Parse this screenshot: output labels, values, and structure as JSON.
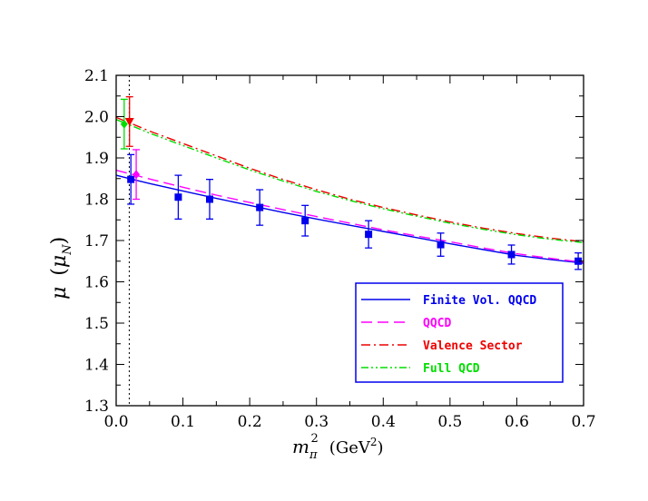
{
  "chart_data": {
    "type": "line",
    "xlabel": {
      "symbol": "m",
      "subscript": "π",
      "superscript": "2",
      "unit": "(GeV",
      "unit_power": "2",
      "unit_close": ")"
    },
    "ylabel": {
      "symbol": "μ",
      "open": "(",
      "inner": "μ",
      "inner_sub": "N",
      "close": ")"
    },
    "xlim": [
      0,
      0.7
    ],
    "ylim": [
      1.3,
      2.1
    ],
    "xticks": [
      "0.0",
      "0.1",
      "0.2",
      "0.3",
      "0.4",
      "0.5",
      "0.6",
      "0.7"
    ],
    "yticks": [
      "1.3",
      "1.4",
      "1.5",
      "1.6",
      "1.7",
      "1.8",
      "1.9",
      "2.0",
      "2.1"
    ],
    "vline_x": 0.0196,
    "curves": [
      {
        "name": "Finite Vol. QQCD",
        "color": "#0000ee",
        "dash": "",
        "x": [
          0.0,
          0.02,
          0.05,
          0.1,
          0.15,
          0.2,
          0.25,
          0.3,
          0.35,
          0.4,
          0.45,
          0.5,
          0.55,
          0.6,
          0.65,
          0.7
        ],
        "y": [
          1.858,
          1.85,
          1.838,
          1.82,
          1.802,
          1.785,
          1.768,
          1.752,
          1.737,
          1.722,
          1.707,
          1.692,
          1.678,
          1.664,
          1.654,
          1.645
        ]
      },
      {
        "name": "QQCD",
        "color": "#ff00ff",
        "dash": "12,6",
        "x": [
          0.0,
          0.02,
          0.05,
          0.1,
          0.15,
          0.2,
          0.25,
          0.3,
          0.35,
          0.4,
          0.45,
          0.5,
          0.55,
          0.6,
          0.65,
          0.7
        ],
        "y": [
          1.87,
          1.862,
          1.849,
          1.829,
          1.81,
          1.792,
          1.775,
          1.758,
          1.742,
          1.726,
          1.711,
          1.697,
          1.682,
          1.668,
          1.657,
          1.647
        ]
      },
      {
        "name": "Valence Sector",
        "color": "#ee0000",
        "dash": "10,4,2,4",
        "x": [
          0.0,
          0.02,
          0.05,
          0.1,
          0.15,
          0.2,
          0.25,
          0.3,
          0.35,
          0.4,
          0.45,
          0.5,
          0.55,
          0.6,
          0.65,
          0.7
        ],
        "y": [
          1.998,
          1.985,
          1.965,
          1.935,
          1.905,
          1.875,
          1.848,
          1.823,
          1.8,
          1.78,
          1.762,
          1.745,
          1.73,
          1.717,
          1.706,
          1.697
        ]
      },
      {
        "name": "Full QCD",
        "color": "#00dd00",
        "dash": "8,3,2,3,2,3",
        "x": [
          0.0,
          0.02,
          0.05,
          0.1,
          0.15,
          0.2,
          0.25,
          0.3,
          0.35,
          0.4,
          0.45,
          0.5,
          0.55,
          0.6,
          0.65,
          0.7
        ],
        "y": [
          1.993,
          1.98,
          1.96,
          1.93,
          1.9,
          1.871,
          1.844,
          1.819,
          1.797,
          1.777,
          1.759,
          1.742,
          1.727,
          1.714,
          1.703,
          1.695
        ]
      }
    ],
    "lattice_points": {
      "color": "#0000ee",
      "points": [
        {
          "x": 0.022,
          "y": 1.848,
          "err": 0.06
        },
        {
          "x": 0.093,
          "y": 1.805,
          "err": 0.053
        },
        {
          "x": 0.14,
          "y": 1.8,
          "err": 0.048
        },
        {
          "x": 0.215,
          "y": 1.78,
          "err": 0.043
        },
        {
          "x": 0.283,
          "y": 1.748,
          "err": 0.037
        },
        {
          "x": 0.378,
          "y": 1.715,
          "err": 0.033
        },
        {
          "x": 0.486,
          "y": 1.69,
          "err": 0.028
        },
        {
          "x": 0.592,
          "y": 1.666,
          "err": 0.023
        },
        {
          "x": 0.692,
          "y": 1.65,
          "err": 0.02
        }
      ]
    },
    "extrapolated_points": [
      {
        "name": "QQCD",
        "x": 0.03,
        "y": 1.86,
        "err": 0.06,
        "color": "#ff00ff",
        "marker": "diamond"
      },
      {
        "name": "Full QCD",
        "x": 0.012,
        "y": 1.982,
        "err": 0.06,
        "color": "#00dd00",
        "marker": "diamond"
      },
      {
        "name": "Valence Sector",
        "x": 0.02,
        "y": 1.988,
        "err": 0.06,
        "color": "#ee0000",
        "marker": "triangle-down"
      }
    ],
    "legend": {
      "position": "bottom-right",
      "entries": [
        "Finite Vol. QQCD",
        "QQCD",
        "Valence Sector",
        "Full QCD"
      ],
      "colors": [
        "#0000ee",
        "#ff00ff",
        "#ee0000",
        "#00dd00"
      ]
    }
  }
}
